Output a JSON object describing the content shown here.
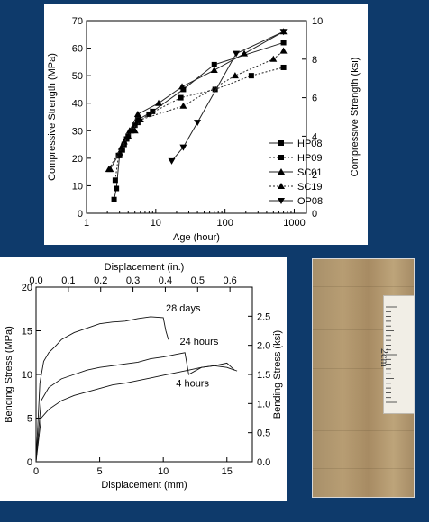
{
  "chart_data": [
    {
      "type": "line",
      "xlabel": "Age (hour)",
      "ylabel": "Compressive Strength (MPa)",
      "y2label": "Compressive Strength (ksi)",
      "xscale": "log",
      "xlim": [
        1,
        1500
      ],
      "ylim": [
        0,
        70
      ],
      "y2lim": [
        0,
        10
      ],
      "xticks": [
        "1",
        "10",
        "100",
        "1000"
      ],
      "yticks": [
        "0",
        "10",
        "20",
        "30",
        "40",
        "50",
        "60",
        "70"
      ],
      "y2ticks": [
        "0",
        "2",
        "4",
        "6",
        "8",
        "10"
      ],
      "legend": "right",
      "series": [
        {
          "name": "HP08",
          "marker": "square",
          "dash": "solid",
          "x": [
            2.5,
            2.7,
            3.0,
            3.5,
            4.0,
            5.0,
            5.5,
            9,
            25,
            70,
            700
          ],
          "y": [
            5,
            9,
            21,
            25,
            28,
            32,
            34,
            37,
            45,
            54,
            62
          ]
        },
        {
          "name": "HP09",
          "marker": "square",
          "dash": "dotted",
          "x": [
            2.6,
            2.9,
            3.3,
            3.8,
            4.5,
            5.5,
            8,
            23,
            72,
            240,
            700
          ],
          "y": [
            12,
            21,
            23,
            27,
            30,
            33,
            36,
            42,
            45,
            50,
            53
          ]
        },
        {
          "name": "SC01",
          "marker": "triangle-up",
          "dash": "solid",
          "x": [
            2.2,
            3.0,
            3.5,
            4.2,
            5.5,
            11,
            24,
            70,
            190,
            700
          ],
          "y": [
            16,
            22,
            26,
            30,
            36,
            40,
            46,
            52,
            58,
            66
          ]
        },
        {
          "name": "SC19",
          "marker": "triangle-up",
          "dash": "dotted",
          "x": [
            2.1,
            3.2,
            4.0,
            5.0,
            6.0,
            25,
            140,
            500,
            700
          ],
          "y": [
            16,
            24,
            28,
            30,
            34,
            39,
            50,
            56,
            59
          ]
        },
        {
          "name": "OP08",
          "marker": "triangle-down",
          "dash": "solid",
          "x": [
            17,
            25,
            40,
            145,
            700
          ],
          "y": [
            19,
            24,
            33,
            58,
            66
          ]
        }
      ]
    },
    {
      "type": "line",
      "xlabel": "Displacement (mm)",
      "x2label": "Displacement (in.)",
      "ylabel": "Bending Stress (MPa)",
      "y2label": "Bending Stress (ksi)",
      "xlim": [
        0,
        17
      ],
      "ylim": [
        0,
        20
      ],
      "y2lim": [
        0,
        3
      ],
      "xticks": [
        "0",
        "5",
        "10",
        "15"
      ],
      "x2ticks": [
        "0.0",
        "0.1",
        "0.2",
        "0.3",
        "0.4",
        "0.5",
        "0.6"
      ],
      "yticks": [
        "0",
        "5",
        "10",
        "15",
        "20"
      ],
      "y2ticks": [
        "0.0",
        "0.5",
        "1.0",
        "1.5",
        "2.0",
        "2.5"
      ],
      "series": [
        {
          "name": "28 days",
          "x": [
            0,
            0.3,
            0.6,
            1,
            1.5,
            2,
            3,
            4,
            5,
            6,
            7,
            8,
            9,
            10,
            10.2,
            10.4
          ],
          "y": [
            0,
            9,
            11.5,
            12.5,
            13.2,
            14,
            14.8,
            15.3,
            15.8,
            16,
            16.1,
            16.4,
            16.6,
            16.5,
            15,
            14
          ]
        },
        {
          "name": "24 hours",
          "x": [
            0,
            0.4,
            1,
            2,
            3,
            4,
            5,
            6,
            7,
            8,
            9,
            10,
            11,
            11.7,
            12,
            13,
            14,
            15,
            15.6
          ],
          "y": [
            0,
            7,
            8.5,
            9.5,
            10,
            10.5,
            10.8,
            11,
            11.2,
            11.4,
            11.8,
            12,
            12.3,
            12.5,
            10,
            10.8,
            11,
            11.3,
            10.5
          ]
        },
        {
          "name": "4 hours",
          "x": [
            0,
            0.4,
            1,
            2,
            3,
            4,
            5,
            6,
            7,
            8,
            9,
            10,
            11,
            12,
            13,
            14,
            15,
            15.8
          ],
          "y": [
            0,
            5,
            6,
            7,
            7.6,
            8,
            8.4,
            8.8,
            9,
            9.3,
            9.6,
            9.9,
            10.2,
            10.5,
            10.8,
            11,
            10.8,
            10.4
          ]
        }
      ],
      "annotations": [
        "28 days",
        "24 hours",
        "4 hours"
      ]
    }
  ],
  "photo": {
    "label": "2cm"
  }
}
